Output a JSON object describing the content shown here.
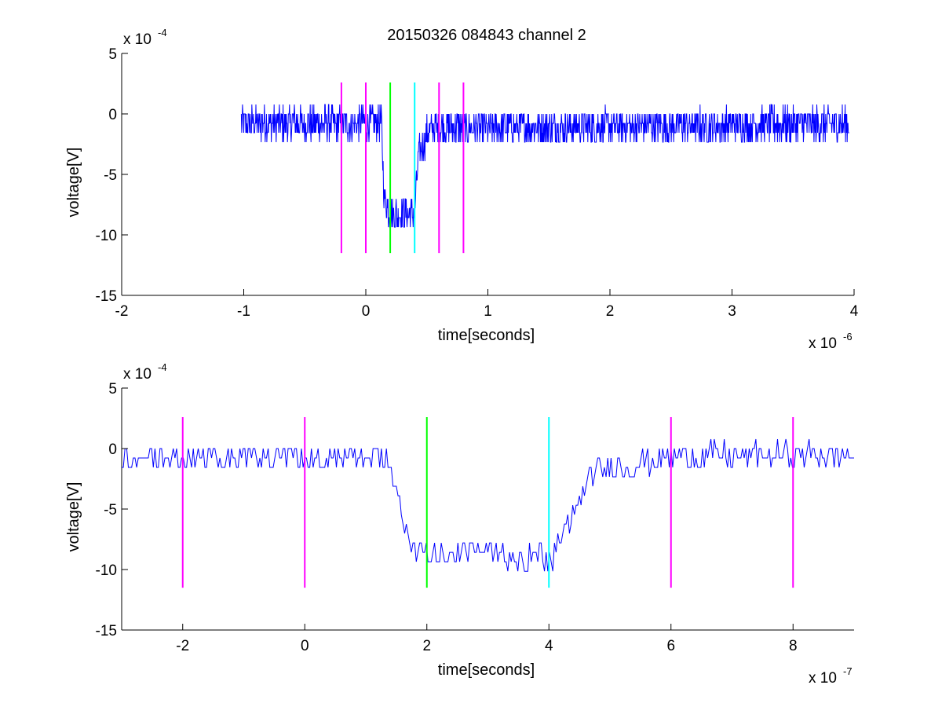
{
  "title": "20150326 084843 channel 2",
  "colors": {
    "trace": "#0000ff",
    "marker_outer": "#ff00ff",
    "marker_start": "#00ff00",
    "marker_end": "#00ffff",
    "axes": "#000000"
  },
  "chart_data": [
    {
      "type": "line",
      "xlabel": "time[seconds]",
      "ylabel": "voltage[V]",
      "x_exponent_label": "x 10",
      "x_exponent": "-6",
      "y_exponent_label": "x 10",
      "y_exponent": "-4",
      "x_scale": 1e-06,
      "y_scale": 0.0001,
      "xlim": [
        -2,
        4
      ],
      "ylim": [
        -15,
        5
      ],
      "xticks": [
        -2,
        -1,
        0,
        1,
        2,
        3,
        4
      ],
      "yticks": [
        -15,
        -10,
        -5,
        0,
        5
      ],
      "grid": false,
      "trace_x_range": [
        -1.02,
        3.96
      ],
      "trace_profile": [
        [
          -1.02,
          -0.8
        ],
        [
          -0.2,
          -0.8
        ],
        [
          0.13,
          -0.8
        ],
        [
          0.15,
          -7.0
        ],
        [
          0.2,
          -8.2
        ],
        [
          0.4,
          -8.2
        ],
        [
          0.43,
          -3.5
        ],
        [
          0.52,
          -1.2
        ],
        [
          3.96,
          -0.8
        ]
      ],
      "noise": 0.9,
      "vlines": [
        {
          "x": -0.2,
          "ylim": [
            -11.5,
            2.6
          ],
          "color": "#ff00ff"
        },
        {
          "x": 0.0,
          "ylim": [
            -11.5,
            2.6
          ],
          "color": "#ff00ff"
        },
        {
          "x": 0.2,
          "ylim": [
            -11.5,
            2.6
          ],
          "color": "#00ff00"
        },
        {
          "x": 0.4,
          "ylim": [
            -11.5,
            2.6
          ],
          "color": "#00ffff"
        },
        {
          "x": 0.6,
          "ylim": [
            -11.5,
            2.6
          ],
          "color": "#ff00ff"
        },
        {
          "x": 0.8,
          "ylim": [
            -11.5,
            2.6
          ],
          "color": "#ff00ff"
        }
      ]
    },
    {
      "type": "line",
      "xlabel": "time[seconds]",
      "ylabel": "voltage[V]",
      "x_exponent_label": "x 10",
      "x_exponent": "-7",
      "y_exponent_label": "x 10",
      "y_exponent": "-4",
      "x_scale": 1e-07,
      "y_scale": 0.0001,
      "xlim": [
        -3,
        9
      ],
      "ylim": [
        -15,
        5
      ],
      "xticks": [
        -2,
        0,
        2,
        4,
        6,
        8
      ],
      "yticks": [
        -15,
        -10,
        -5,
        0,
        5
      ],
      "grid": false,
      "trace_x_range": [
        -3,
        9
      ],
      "trace_profile": [
        [
          -3,
          -0.8
        ],
        [
          1.35,
          -0.8
        ],
        [
          1.5,
          -3.5
        ],
        [
          1.6,
          -6.5
        ],
        [
          1.75,
          -7.8
        ],
        [
          2.0,
          -8.6
        ],
        [
          3.0,
          -8.6
        ],
        [
          3.9,
          -9.0
        ],
        [
          4.05,
          -9.2
        ],
        [
          4.2,
          -7.2
        ],
        [
          4.35,
          -6.5
        ],
        [
          4.55,
          -3.2
        ],
        [
          4.8,
          -1.8
        ],
        [
          5.5,
          -1.2
        ],
        [
          6.2,
          -0.6
        ],
        [
          9,
          -0.6
        ]
      ],
      "noise": 0.7,
      "vlines": [
        {
          "x": -2,
          "ylim": [
            -11.5,
            2.6
          ],
          "color": "#ff00ff"
        },
        {
          "x": 0,
          "ylim": [
            -11.5,
            2.6
          ],
          "color": "#ff00ff"
        },
        {
          "x": 2,
          "ylim": [
            -11.5,
            2.6
          ],
          "color": "#00ff00"
        },
        {
          "x": 4,
          "ylim": [
            -11.5,
            2.6
          ],
          "color": "#00ffff"
        },
        {
          "x": 6,
          "ylim": [
            -11.5,
            2.6
          ],
          "color": "#ff00ff"
        },
        {
          "x": 8,
          "ylim": [
            -11.5,
            2.6
          ],
          "color": "#ff00ff"
        }
      ]
    }
  ]
}
